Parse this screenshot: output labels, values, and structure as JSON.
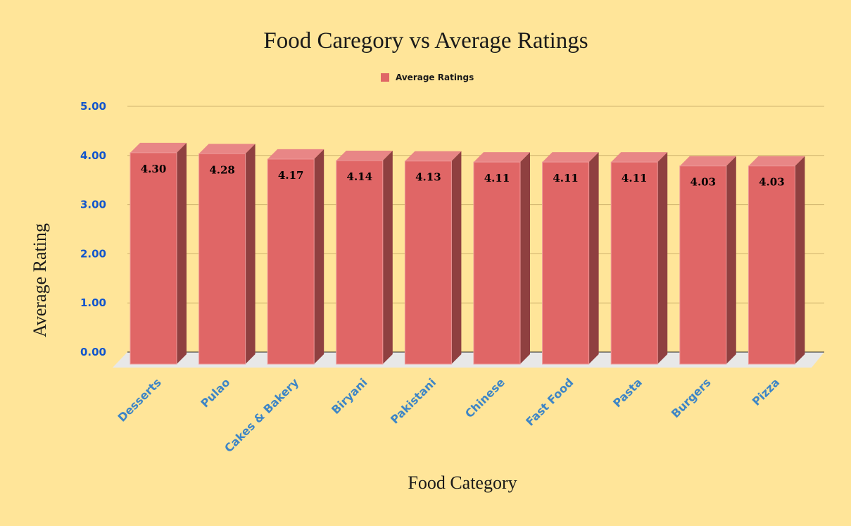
{
  "chart_data": {
    "type": "bar",
    "title": "Food Caregory vs Average Ratings",
    "xlabel": "Food Category",
    "ylabel": "Average Rating",
    "legend": {
      "position": "top",
      "entries": [
        "Average Ratings"
      ]
    },
    "categories": [
      "Desserts",
      "Pulao",
      "Cakes & Bakery",
      "Biryani",
      "Pakistani",
      "Chinese",
      "Fast Food",
      "Pasta",
      "Burgers",
      "Pizza"
    ],
    "series": [
      {
        "name": "Average Ratings",
        "values": [
          4.3,
          4.28,
          4.17,
          4.14,
          4.13,
          4.11,
          4.11,
          4.11,
          4.03,
          4.03
        ],
        "labels": [
          "4.30",
          "4.28",
          "4.17",
          "4.14",
          "4.13",
          "4.11",
          "4.11",
          "4.11",
          "4.03",
          "4.03"
        ]
      }
    ],
    "yticks": [
      "0.00",
      "1.00",
      "2.00",
      "3.00",
      "4.00",
      "5.00"
    ],
    "ylim": [
      0,
      5
    ],
    "grid": true,
    "colors": {
      "bar": "#e06666",
      "bar_top": "#e88686",
      "bar_side": "#8f4040",
      "floor": "#e8e8e8",
      "grid": "#cfb36e",
      "accent": "#1155cc"
    }
  }
}
